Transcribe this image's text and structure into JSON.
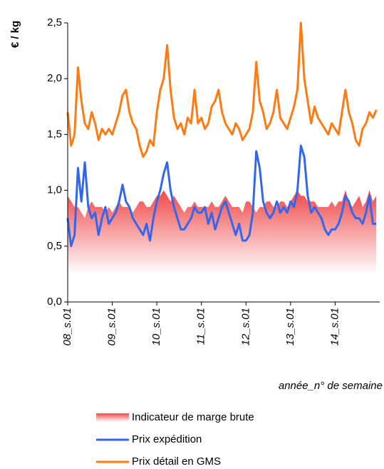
{
  "chart_data": {
    "type": "line",
    "y_label": "€ / kg",
    "x_label": "année_n° de semaine",
    "ylim": [
      0,
      2.5
    ],
    "yticks": [
      {
        "value": 0,
        "label": "0,0"
      },
      {
        "value": 0.5,
        "label": "0,5"
      },
      {
        "value": 1,
        "label": "1,0"
      },
      {
        "value": 1.5,
        "label": "1,5"
      },
      {
        "value": 2,
        "label": "2,0"
      },
      {
        "value": 2.5,
        "label": "2,5"
      }
    ],
    "grid": false,
    "categories": [
      "08_s.01",
      null,
      null,
      null,
      null,
      null,
      null,
      null,
      null,
      null,
      null,
      null,
      null,
      "09_s.01",
      null,
      null,
      null,
      null,
      null,
      null,
      null,
      null,
      null,
      null,
      null,
      null,
      "10_s.01",
      null,
      null,
      null,
      null,
      null,
      null,
      null,
      null,
      null,
      null,
      null,
      null,
      "11_s.01",
      null,
      null,
      null,
      null,
      null,
      null,
      null,
      null,
      null,
      null,
      null,
      null,
      "12_s.01",
      null,
      null,
      null,
      null,
      null,
      null,
      null,
      null,
      null,
      null,
      null,
      null,
      "13_s.01",
      null,
      null,
      null,
      null,
      null,
      null,
      null,
      null,
      null,
      null,
      null,
      null,
      "14_s.01",
      null,
      null,
      null,
      null,
      null,
      null,
      null,
      null,
      null,
      null,
      null,
      null
    ],
    "series": [
      {
        "name": "Indicateur de marge brute",
        "kind": "area",
        "color": "#f04848",
        "values": [
          0.95,
          0.9,
          0.85,
          0.85,
          0.8,
          0.75,
          0.85,
          0.9,
          0.85,
          0.85,
          0.85,
          0.8,
          0.85,
          0.8,
          0.85,
          0.9,
          0.85,
          0.85,
          0.85,
          0.8,
          0.85,
          0.9,
          0.9,
          0.85,
          0.85,
          0.9,
          0.95,
          0.95,
          1.0,
          0.95,
          0.9,
          0.95,
          0.9,
          0.85,
          0.8,
          0.85,
          0.85,
          0.9,
          0.85,
          0.85,
          0.85,
          0.85,
          0.9,
          0.85,
          0.85,
          0.9,
          0.95,
          0.9,
          0.85,
          0.85,
          0.85,
          0.8,
          0.9,
          0.9,
          0.85,
          0.8,
          0.85,
          0.85,
          0.9,
          0.9,
          0.85,
          0.85,
          0.9,
          0.9,
          0.85,
          0.9,
          0.95,
          1.0,
          0.95,
          0.95,
          0.9,
          0.9,
          0.9,
          0.85,
          0.85,
          0.85,
          0.85,
          0.9,
          0.85,
          0.9,
          0.9,
          1.0,
          0.9,
          0.85,
          0.9,
          0.95,
          0.85,
          0.9,
          1.0,
          0.9,
          0.95
        ]
      },
      {
        "name": "Prix expédition",
        "kind": "line",
        "color": "#3366ee",
        "values": [
          0.75,
          0.5,
          0.6,
          1.2,
          0.9,
          1.25,
          0.85,
          0.75,
          0.8,
          0.6,
          0.75,
          0.85,
          0.7,
          0.75,
          0.8,
          0.9,
          1.05,
          0.9,
          0.85,
          0.75,
          0.7,
          0.65,
          0.6,
          0.7,
          0.55,
          0.75,
          0.9,
          1.0,
          1.15,
          1.25,
          1.0,
          0.85,
          0.75,
          0.65,
          0.65,
          0.7,
          0.75,
          0.85,
          0.8,
          0.8,
          0.85,
          0.7,
          0.8,
          0.65,
          0.75,
          0.85,
          0.9,
          0.8,
          0.7,
          0.6,
          0.7,
          0.55,
          0.55,
          0.6,
          0.8,
          1.35,
          1.2,
          0.9,
          0.8,
          0.75,
          0.8,
          0.9,
          0.8,
          0.85,
          0.8,
          0.9,
          0.85,
          1.0,
          1.4,
          1.3,
          0.95,
          0.8,
          0.85,
          0.8,
          0.75,
          0.65,
          0.6,
          0.65,
          0.65,
          0.7,
          0.8,
          0.95,
          0.9,
          0.8,
          0.75,
          0.75,
          0.7,
          0.8,
          0.95,
          0.7,
          0.7
        ]
      },
      {
        "name": "Prix détail en GMS",
        "kind": "line",
        "color": "#ff7a10",
        "values": [
          1.7,
          1.4,
          1.5,
          2.1,
          1.8,
          1.6,
          1.55,
          1.7,
          1.6,
          1.45,
          1.55,
          1.5,
          1.55,
          1.5,
          1.6,
          1.7,
          1.85,
          1.9,
          1.7,
          1.6,
          1.55,
          1.4,
          1.3,
          1.35,
          1.45,
          1.4,
          1.7,
          1.9,
          2.0,
          2.3,
          1.9,
          1.65,
          1.55,
          1.6,
          1.5,
          1.65,
          1.6,
          1.9,
          1.6,
          1.65,
          1.55,
          1.6,
          1.75,
          1.8,
          1.9,
          1.7,
          1.6,
          1.55,
          1.5,
          1.6,
          1.55,
          1.45,
          1.5,
          1.55,
          1.7,
          2.15,
          1.8,
          1.7,
          1.55,
          1.6,
          1.7,
          1.9,
          1.65,
          1.6,
          1.55,
          1.65,
          1.75,
          1.9,
          2.5,
          2.0,
          1.8,
          1.6,
          1.75,
          1.65,
          1.6,
          1.55,
          1.5,
          1.6,
          1.55,
          1.5,
          1.7,
          1.9,
          1.7,
          1.6,
          1.45,
          1.4,
          1.55,
          1.6,
          1.7,
          1.65,
          1.72
        ]
      }
    ]
  }
}
